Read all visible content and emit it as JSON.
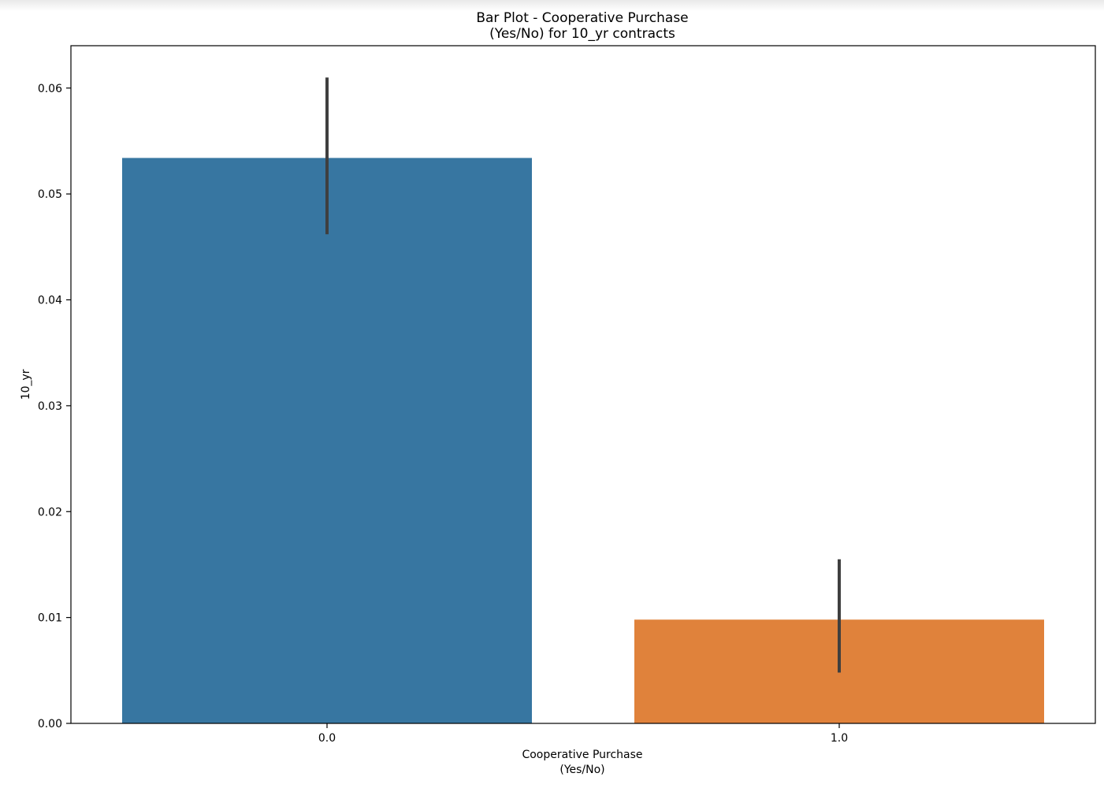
{
  "chart_data": {
    "type": "bar",
    "title": "Bar Plot - Cooperative Purchase\n(Yes/No) for 10_yr contracts",
    "xlabel": "Cooperative Purchase\n(Yes/No)",
    "ylabel": "10_yr",
    "categories": [
      "0.0",
      "1.0"
    ],
    "values": [
      0.0534,
      0.0098
    ],
    "error_low": [
      0.0462,
      0.0048
    ],
    "error_high": [
      0.061,
      0.0155
    ],
    "colors": [
      "#3776a1",
      "#e0823b"
    ],
    "error_color": "#3f3f3f",
    "ylim": [
      0,
      0.064
    ],
    "yticks": [
      "0.00",
      "0.01",
      "0.02",
      "0.03",
      "0.04",
      "0.05",
      "0.06"
    ],
    "grid": false,
    "legend": "none"
  }
}
